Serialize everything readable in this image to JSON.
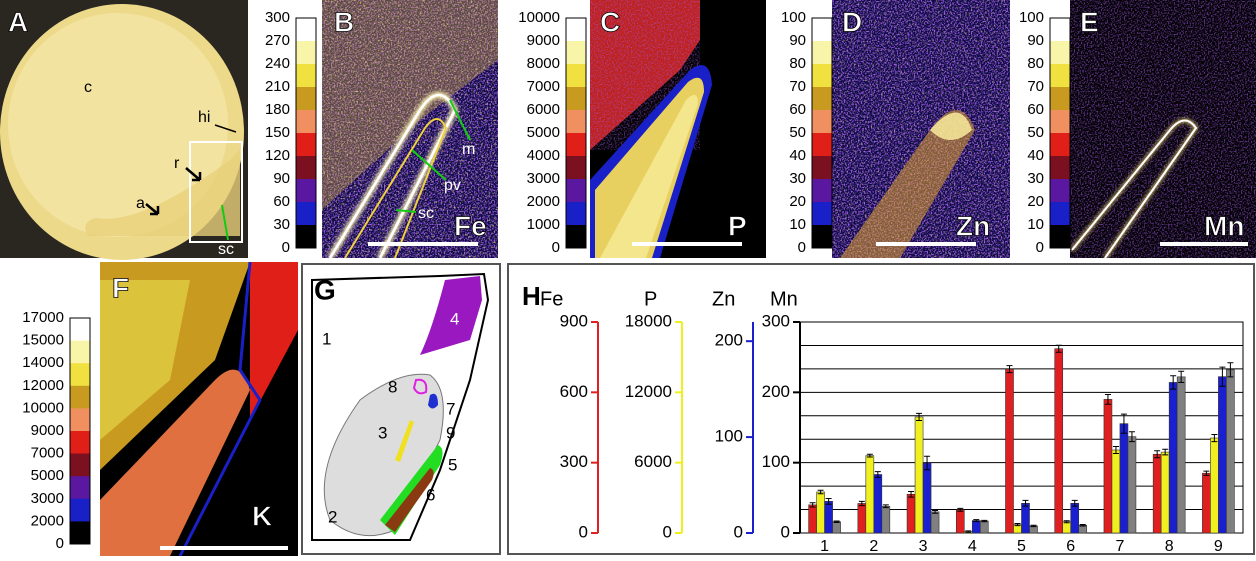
{
  "panels": {
    "A": {
      "label": "A",
      "annotations": [
        "c",
        "hi",
        "r",
        "a",
        "sc"
      ]
    },
    "B": {
      "label": "B",
      "element": "Fe",
      "annotations": [
        "m",
        "pv",
        "sc"
      ],
      "colorbar": [
        300,
        270,
        240,
        210,
        180,
        150,
        120,
        90,
        60,
        30,
        0
      ]
    },
    "C": {
      "label": "C",
      "element": "P",
      "colorbar": [
        10000,
        9000,
        8000,
        7000,
        6000,
        5000,
        4000,
        3000,
        2000,
        1000,
        0
      ]
    },
    "D": {
      "label": "D",
      "element": "Zn",
      "colorbar": [
        100,
        90,
        80,
        70,
        60,
        50,
        40,
        30,
        20,
        10,
        0
      ]
    },
    "E": {
      "label": "E",
      "element": "Mn",
      "colorbar": [
        100,
        90,
        80,
        70,
        60,
        50,
        40,
        30,
        20,
        10,
        0
      ]
    },
    "F": {
      "label": "F",
      "element": "K",
      "colorbar": [
        17000,
        15000,
        14000,
        12000,
        10000,
        9000,
        7000,
        5000,
        3000,
        2000,
        0
      ]
    },
    "G": {
      "label": "G",
      "regions": [
        "1",
        "2",
        "3",
        "4",
        "5",
        "6",
        "7",
        "8",
        "9"
      ]
    }
  },
  "colorbar_colors": [
    "#ffffff",
    "#f8f4a8",
    "#f0e040",
    "#c89a20",
    "#f09060",
    "#e02018",
    "#7a1020",
    "#5a18a0",
    "#1a20c8",
    "#000000"
  ],
  "chart_data": {
    "type": "bar",
    "label": "H",
    "categories": [
      "1",
      "2",
      "3",
      "4",
      "5",
      "6",
      "7",
      "8",
      "9"
    ],
    "axes": [
      {
        "name": "Fe",
        "color": "#e02020",
        "ylim": [
          0,
          900
        ],
        "yticks": [
          0,
          300,
          600,
          900
        ],
        "gridlines": [
          100,
          200,
          300,
          400,
          500,
          600,
          700,
          800,
          900
        ]
      },
      {
        "name": "P",
        "color": "#f0f020",
        "ylim": [
          0,
          18000
        ],
        "yticks": [
          0,
          6000,
          12000,
          18000
        ]
      },
      {
        "name": "Zn",
        "color": "#1a20d0",
        "ylim": [
          0,
          220
        ],
        "yticks": [
          0,
          100,
          200
        ]
      },
      {
        "name": "Mn",
        "color": "#000000",
        "ylim": [
          0,
          300
        ],
        "yticks": [
          0,
          100,
          200,
          300
        ]
      }
    ],
    "series": [
      {
        "axis": 0,
        "color": "#e02020",
        "values": [
          120,
          126,
          165,
          99,
          699,
          786,
          570,
          336,
          255
        ],
        "errors": [
          9,
          9,
          12,
          6,
          15,
          15,
          21,
          15,
          9
        ]
      },
      {
        "axis": 1,
        "color": "#f0f020",
        "values": [
          3500,
          6600,
          9900,
          120,
          720,
          960,
          7080,
          6900,
          8100
        ],
        "errors": [
          150,
          120,
          300,
          60,
          90,
          90,
          300,
          240,
          300
        ]
      },
      {
        "axis": 2,
        "color": "#1a20d0",
        "values": [
          33,
          61,
          73,
          13,
          31,
          31,
          114,
          157,
          163
        ],
        "errors": [
          3,
          3,
          7,
          1,
          3,
          3,
          10,
          7,
          10
        ]
      },
      {
        "axis": 3,
        "color": "#808080",
        "values": [
          16,
          38,
          30,
          17,
          10,
          11,
          137,
          222,
          232
        ],
        "errors": [
          1,
          2,
          2,
          1,
          1,
          1,
          7,
          8,
          10
        ]
      }
    ]
  }
}
